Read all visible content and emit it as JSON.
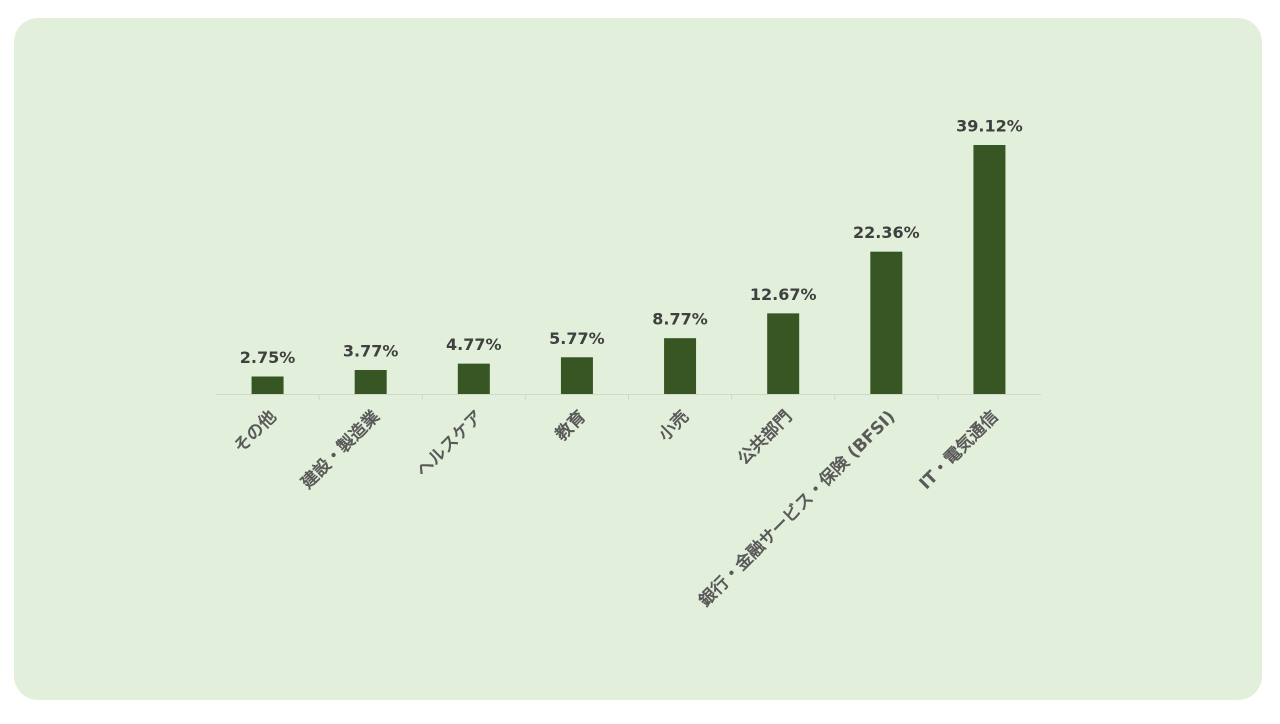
{
  "chart_data": {
    "type": "bar",
    "categories": [
      "その他",
      "建設・製造業",
      "ヘルスケア",
      "教育",
      "小売",
      "公共部門",
      "銀行・金融サービス・保険 (BFSI)",
      "IT・電気通信"
    ],
    "values": [
      2.75,
      3.77,
      4.77,
      5.77,
      8.77,
      12.67,
      22.36,
      39.12
    ],
    "value_labels": [
      "2.75%",
      "3.77%",
      "4.77%",
      "5.77%",
      "8.77%",
      "12.67%",
      "22.36%",
      "39.12%"
    ],
    "color": "#375623"
  }
}
